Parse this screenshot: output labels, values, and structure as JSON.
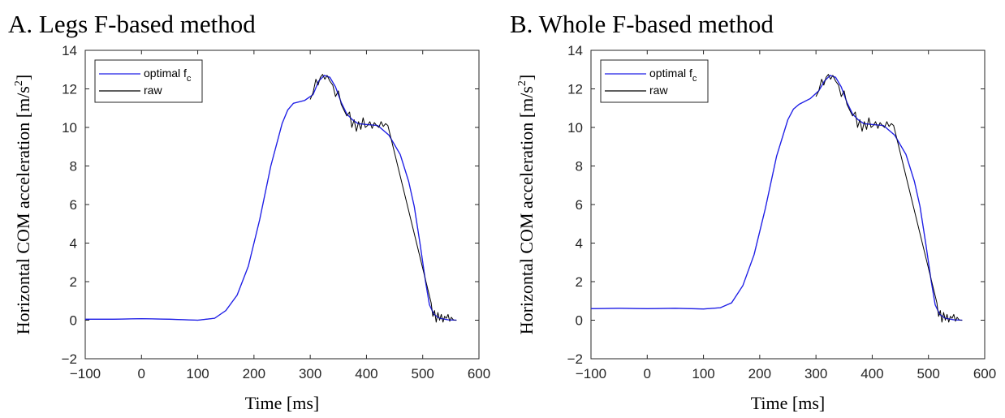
{
  "colors": {
    "optimal": "#1f1fe6",
    "raw": "#000000",
    "axis": "#262626"
  },
  "chart_data": [
    {
      "type": "line",
      "title": "A. Legs F-based method",
      "xlabel": "Time [ms]",
      "ylabel": "Horizontal COM acceleration [m/s2]",
      "ylabel_text": "Horizontal COM acceleration [m/s",
      "ylabel_sup": "2",
      "ylabel_close": "]",
      "xlim": [
        -100,
        600
      ],
      "ylim": [
        -2,
        14
      ],
      "xticks": [
        -100,
        0,
        100,
        200,
        300,
        400,
        500,
        600
      ],
      "yticks": [
        -2,
        0,
        2,
        4,
        6,
        8,
        10,
        12,
        14
      ],
      "xtick_labels": [
        "−100",
        "0",
        "100",
        "200",
        "300",
        "400",
        "500",
        "600"
      ],
      "ytick_labels": [
        "−2",
        "0",
        "2",
        "4",
        "6",
        "8",
        "10",
        "12",
        "14"
      ],
      "legend": {
        "position": "top-left",
        "entries": [
          {
            "label": "optimal f",
            "sub": "c",
            "series": "optimal"
          },
          {
            "label": "raw",
            "sub": "",
            "series": "raw"
          }
        ]
      },
      "series": [
        {
          "name": "optimal f_c",
          "key": "optimal",
          "x": [
            -100,
            -50,
            0,
            50,
            100,
            130,
            150,
            170,
            190,
            210,
            230,
            250,
            260,
            270,
            290,
            305,
            315,
            325,
            335,
            345,
            355,
            365,
            375,
            385,
            400,
            420,
            440,
            460,
            475,
            485,
            495,
            505,
            512,
            520,
            530,
            545,
            560
          ],
          "y": [
            0.05,
            0.05,
            0.08,
            0.05,
            0.0,
            0.1,
            0.5,
            1.3,
            2.8,
            5.2,
            8.0,
            10.2,
            10.9,
            11.25,
            11.4,
            11.7,
            12.4,
            12.7,
            12.6,
            12.1,
            11.3,
            10.7,
            10.4,
            10.2,
            10.15,
            10.1,
            9.6,
            8.6,
            7.2,
            5.9,
            4.0,
            2.0,
            0.8,
            0.3,
            0.1,
            0.02,
            0.0
          ]
        },
        {
          "name": "raw",
          "key": "raw",
          "x": [
            300,
            305,
            310,
            314,
            318,
            322,
            326,
            330,
            335,
            340,
            345,
            350,
            355,
            360,
            365,
            370,
            374,
            378,
            382,
            386,
            390,
            394,
            398,
            402,
            406,
            410,
            414,
            418,
            422,
            426,
            430,
            434,
            438,
            515,
            518,
            521,
            524,
            527,
            530,
            533,
            536,
            539,
            542,
            545,
            548,
            551,
            555,
            560
          ],
          "y": [
            11.45,
            11.8,
            12.5,
            12.2,
            12.6,
            12.75,
            12.5,
            12.7,
            12.4,
            12.2,
            11.6,
            11.9,
            11.2,
            10.9,
            10.6,
            10.8,
            10.0,
            10.4,
            9.8,
            10.3,
            9.9,
            10.5,
            10.0,
            10.1,
            10.3,
            9.95,
            10.25,
            10.1,
            10.0,
            10.3,
            10.05,
            10.2,
            10.1,
            0.9,
            0.2,
            0.5,
            -0.1,
            0.4,
            0.0,
            0.3,
            -0.1,
            0.2,
            0.1,
            0.3,
            -0.05,
            0.15,
            0.0,
            0.0
          ]
        }
      ]
    },
    {
      "type": "line",
      "title": "B. Whole F-based method",
      "xlabel": "Time [ms]",
      "ylabel": "Horizontal COM acceleration [m/s2]",
      "ylabel_text": "Horizontal COM acceleration [m/s",
      "ylabel_sup": "2",
      "ylabel_close": "]",
      "xlim": [
        -100,
        600
      ],
      "ylim": [
        -2,
        14
      ],
      "xticks": [
        -100,
        0,
        100,
        200,
        300,
        400,
        500,
        600
      ],
      "yticks": [
        -2,
        0,
        2,
        4,
        6,
        8,
        10,
        12,
        14
      ],
      "xtick_labels": [
        "−100",
        "0",
        "100",
        "200",
        "300",
        "400",
        "500",
        "600"
      ],
      "ytick_labels": [
        "−2",
        "0",
        "2",
        "4",
        "6",
        "8",
        "10",
        "12",
        "14"
      ],
      "legend": {
        "position": "top-left",
        "entries": [
          {
            "label": "optimal f",
            "sub": "c",
            "series": "optimal"
          },
          {
            "label": "raw",
            "sub": "",
            "series": "raw"
          }
        ]
      },
      "series": [
        {
          "name": "optimal f_c",
          "key": "optimal",
          "x": [
            -100,
            -50,
            0,
            50,
            100,
            130,
            150,
            170,
            190,
            210,
            230,
            250,
            260,
            270,
            290,
            305,
            315,
            325,
            335,
            345,
            355,
            365,
            375,
            385,
            400,
            420,
            440,
            460,
            475,
            485,
            495,
            505,
            512,
            520,
            530,
            545,
            560
          ],
          "y": [
            0.6,
            0.62,
            0.6,
            0.62,
            0.58,
            0.65,
            0.9,
            1.8,
            3.4,
            5.8,
            8.5,
            10.4,
            10.95,
            11.2,
            11.5,
            11.9,
            12.4,
            12.7,
            12.6,
            12.1,
            11.3,
            10.7,
            10.4,
            10.2,
            10.15,
            10.1,
            9.6,
            8.6,
            7.2,
            5.9,
            4.0,
            2.0,
            0.8,
            0.3,
            0.1,
            0.02,
            0.0
          ]
        },
        {
          "name": "raw",
          "key": "raw",
          "x": [
            300,
            305,
            310,
            314,
            318,
            322,
            326,
            330,
            335,
            340,
            345,
            350,
            355,
            360,
            365,
            370,
            374,
            378,
            382,
            386,
            390,
            394,
            398,
            402,
            406,
            410,
            414,
            418,
            422,
            426,
            430,
            434,
            438,
            515,
            518,
            521,
            524,
            527,
            530,
            533,
            536,
            539,
            542,
            545,
            548,
            551,
            555,
            560
          ],
          "y": [
            11.6,
            11.9,
            12.5,
            12.2,
            12.6,
            12.75,
            12.5,
            12.7,
            12.4,
            12.2,
            11.6,
            11.9,
            11.2,
            10.9,
            10.6,
            10.8,
            10.0,
            10.4,
            9.8,
            10.3,
            9.9,
            10.5,
            10.0,
            10.1,
            10.3,
            9.95,
            10.25,
            10.1,
            10.0,
            10.3,
            10.05,
            10.2,
            10.1,
            0.9,
            0.2,
            0.5,
            -0.1,
            0.4,
            0.0,
            0.3,
            -0.1,
            0.2,
            0.1,
            0.3,
            -0.05,
            0.15,
            0.0,
            0.0
          ]
        }
      ]
    }
  ]
}
